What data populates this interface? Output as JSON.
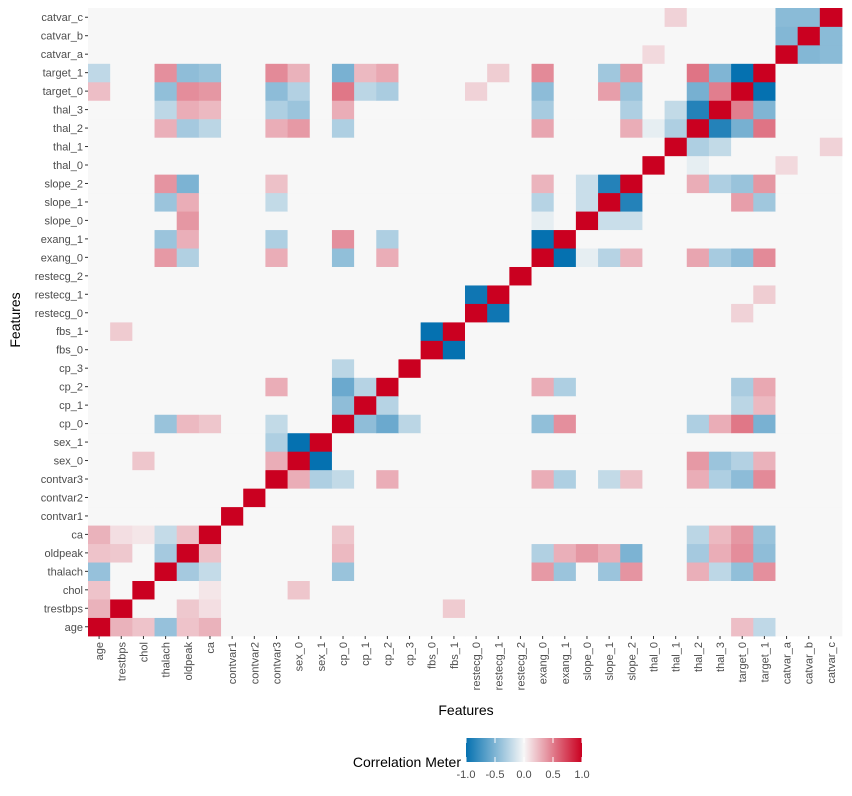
{
  "chart_data": {
    "type": "heatmap",
    "title": "",
    "xlabel": "Features",
    "ylabel": "Features",
    "features": [
      "age",
      "trestbps",
      "chol",
      "thalach",
      "oldpeak",
      "ca",
      "contvar1",
      "contvar2",
      "contvar3",
      "sex_0",
      "sex_1",
      "cp_0",
      "cp_1",
      "cp_2",
      "cp_3",
      "fbs_0",
      "fbs_1",
      "restecg_0",
      "restecg_1",
      "restecg_2",
      "exang_0",
      "exang_1",
      "slope_0",
      "slope_1",
      "slope_2",
      "thal_0",
      "thal_1",
      "thal_2",
      "thal_3",
      "target_0",
      "target_1",
      "catvar_a",
      "catvar_b",
      "catvar_c"
    ],
    "known_correlations": [
      [
        "age",
        "trestbps",
        0.28
      ],
      [
        "age",
        "chol",
        0.21
      ],
      [
        "age",
        "thalach",
        -0.4
      ],
      [
        "age",
        "oldpeak",
        0.21
      ],
      [
        "age",
        "ca",
        0.28
      ],
      [
        "age",
        "target_0",
        0.23
      ],
      [
        "age",
        "target_1",
        -0.23
      ],
      [
        "trestbps",
        "oldpeak",
        0.19
      ],
      [
        "trestbps",
        "ca",
        0.1
      ],
      [
        "trestbps",
        "fbs_1",
        0.18
      ],
      [
        "chol",
        "ca",
        0.07
      ],
      [
        "chol",
        "sex_0",
        0.2
      ],
      [
        "thalach",
        "oldpeak",
        -0.34
      ],
      [
        "thalach",
        "ca",
        -0.21
      ],
      [
        "thalach",
        "exang_0",
        0.38
      ],
      [
        "thalach",
        "exang_1",
        -0.38
      ],
      [
        "thalach",
        "slope_2",
        0.4
      ],
      [
        "thalach",
        "slope_1",
        -0.38
      ],
      [
        "thalach",
        "cp_0",
        -0.39
      ],
      [
        "thalach",
        "target_0",
        -0.42
      ],
      [
        "thalach",
        "target_1",
        0.42
      ],
      [
        "thalach",
        "thal_2",
        0.29
      ],
      [
        "thalach",
        "thal_3",
        -0.24
      ],
      [
        "oldpeak",
        "ca",
        0.22
      ],
      [
        "oldpeak",
        "slope_2",
        -0.51
      ],
      [
        "oldpeak",
        "slope_0",
        0.39
      ],
      [
        "oldpeak",
        "slope_1",
        0.3
      ],
      [
        "oldpeak",
        "exang_0",
        -0.29
      ],
      [
        "oldpeak",
        "exang_1",
        0.29
      ],
      [
        "oldpeak",
        "target_0",
        0.43
      ],
      [
        "oldpeak",
        "target_1",
        -0.43
      ],
      [
        "oldpeak",
        "thal_2",
        -0.34
      ],
      [
        "oldpeak",
        "thal_3",
        0.3
      ],
      [
        "oldpeak",
        "cp_0",
        0.25
      ],
      [
        "ca",
        "target_0",
        0.39
      ],
      [
        "ca",
        "target_1",
        -0.39
      ],
      [
        "ca",
        "thal_2",
        -0.25
      ],
      [
        "ca",
        "thal_3",
        0.25
      ],
      [
        "ca",
        "cp_0",
        0.2
      ],
      [
        "contvar3",
        "target_0",
        -0.44
      ],
      [
        "contvar3",
        "target_1",
        0.44
      ],
      [
        "contvar3",
        "cp_0",
        -0.22
      ],
      [
        "contvar3",
        "cp_2",
        0.3
      ],
      [
        "contvar3",
        "exang_0",
        0.3
      ],
      [
        "contvar3",
        "exang_1",
        -0.3
      ],
      [
        "contvar3",
        "thal_2",
        0.3
      ],
      [
        "contvar3",
        "thal_3",
        -0.3
      ],
      [
        "contvar3",
        "sex_0",
        0.3
      ],
      [
        "contvar3",
        "sex_1",
        -0.3
      ],
      [
        "contvar3",
        "slope_1",
        -0.22
      ],
      [
        "contvar3",
        "slope_2",
        0.22
      ],
      [
        "sex_0",
        "sex_1",
        -1.0
      ],
      [
        "sex_0",
        "thal_2",
        0.38
      ],
      [
        "sex_0",
        "thal_3",
        -0.38
      ],
      [
        "sex_0",
        "target_0",
        -0.28
      ],
      [
        "sex_0",
        "target_1",
        0.28
      ],
      [
        "cp_0",
        "cp_1",
        -0.43
      ],
      [
        "cp_0",
        "cp_2",
        -0.58
      ],
      [
        "cp_0",
        "cp_3",
        -0.25
      ],
      [
        "cp_0",
        "exang_0",
        -0.42
      ],
      [
        "cp_0",
        "exang_1",
        0.42
      ],
      [
        "cp_0",
        "target_0",
        0.52
      ],
      [
        "cp_0",
        "target_1",
        -0.52
      ],
      [
        "cp_0",
        "thal_2",
        -0.3
      ],
      [
        "cp_0",
        "thal_3",
        0.3
      ],
      [
        "cp_1",
        "cp_2",
        -0.27
      ],
      [
        "cp_1",
        "target_0",
        -0.25
      ],
      [
        "cp_1",
        "target_1",
        0.25
      ],
      [
        "cp_2",
        "target_0",
        -0.32
      ],
      [
        "cp_2",
        "target_1",
        0.32
      ],
      [
        "cp_2",
        "exang_0",
        0.3
      ],
      [
        "cp_2",
        "exang_1",
        -0.3
      ],
      [
        "fbs_0",
        "fbs_1",
        -1.0
      ],
      [
        "restecg_0",
        "restecg_1",
        -0.96
      ],
      [
        "restecg_0",
        "target_0",
        0.15
      ],
      [
        "restecg_1",
        "target_1",
        0.17
      ],
      [
        "exang_0",
        "exang_1",
        -1.0
      ],
      [
        "exang_0",
        "target_0",
        -0.44
      ],
      [
        "exang_0",
        "target_1",
        0.44
      ],
      [
        "exang_0",
        "slope_2",
        0.27
      ],
      [
        "exang_0",
        "slope_1",
        -0.27
      ],
      [
        "exang_0",
        "thal_2",
        0.33
      ],
      [
        "exang_0",
        "thal_3",
        -0.33
      ],
      [
        "exang_0",
        "slope_0",
        -0.07
      ],
      [
        "slope_0",
        "slope_1",
        -0.19
      ],
      [
        "slope_0",
        "slope_2",
        -0.19
      ],
      [
        "slope_1",
        "slope_2",
        -0.87
      ],
      [
        "slope_1",
        "target_0",
        0.36
      ],
      [
        "slope_1",
        "target_1",
        -0.36
      ],
      [
        "slope_2",
        "target_0",
        -0.39
      ],
      [
        "slope_2",
        "target_1",
        0.39
      ],
      [
        "slope_2",
        "thal_2",
        0.3
      ],
      [
        "slope_2",
        "thal_3",
        -0.3
      ],
      [
        "thal_0",
        "thal_2",
        -0.07
      ],
      [
        "thal_1",
        "thal_2",
        -0.3
      ],
      [
        "thal_1",
        "thal_3",
        -0.22
      ],
      [
        "thal_2",
        "thal_3",
        -0.87
      ],
      [
        "thal_2",
        "target_0",
        -0.53
      ],
      [
        "thal_2",
        "target_1",
        0.53
      ],
      [
        "thal_3",
        "target_0",
        0.49
      ],
      [
        "thal_3",
        "target_1",
        -0.49
      ],
      [
        "target_0",
        "target_1",
        -1.0
      ],
      [
        "catvar_a",
        "catvar_b",
        -0.48
      ],
      [
        "catvar_a",
        "catvar_c",
        -0.45
      ],
      [
        "catvar_b",
        "catvar_c",
        -0.45
      ],
      [
        "catvar_c",
        "thal_1",
        0.15
      ],
      [
        "catvar_a",
        "thal_0",
        0.12
      ]
    ],
    "legend": {
      "title": "Correlation Meter",
      "ticks": [
        "-1.0",
        "-0.5",
        "0.0",
        "0.5",
        "1.0"
      ],
      "tick_values": [
        -1.0,
        -0.5,
        0.0,
        0.5,
        1.0
      ],
      "range": [
        -1,
        1
      ],
      "low_color": "#0571b0",
      "mid_color": "#f7f7f7",
      "high_color": "#ca0020",
      "placement": "bottom"
    },
    "diagonal_value": 1.0
  }
}
